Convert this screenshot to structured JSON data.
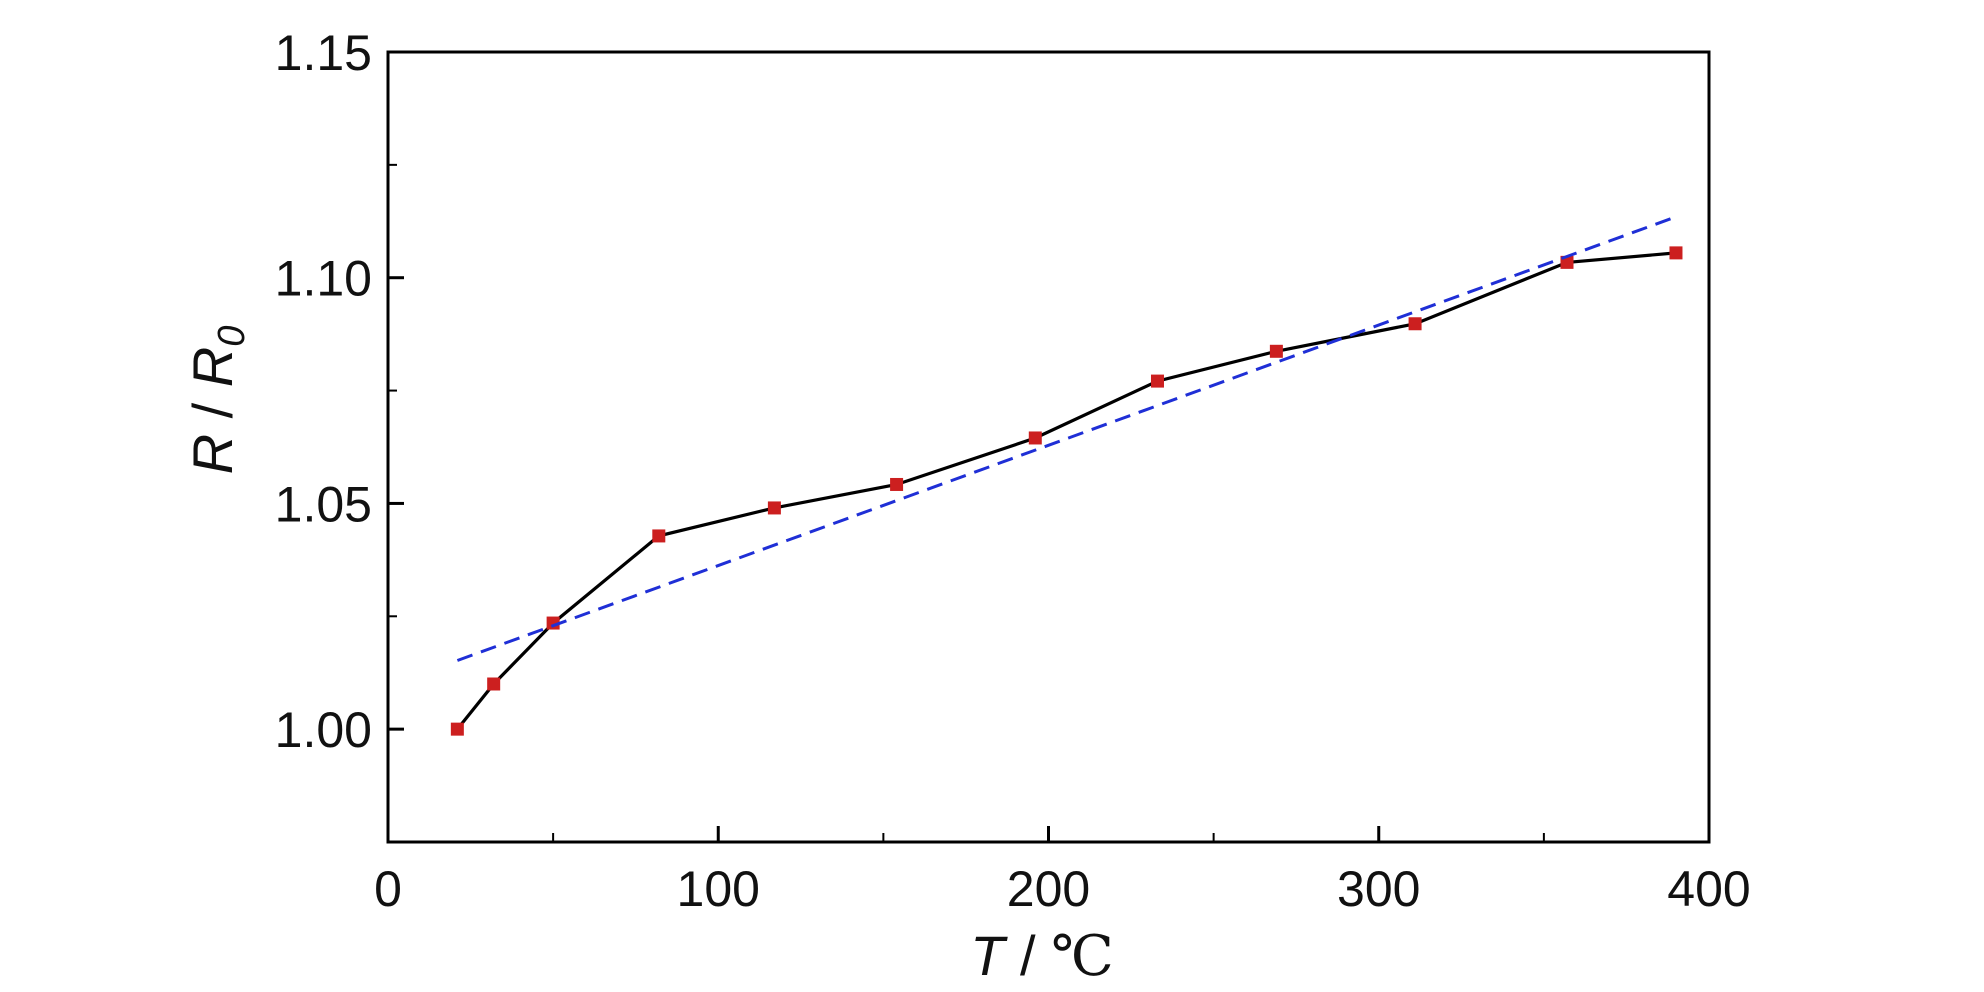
{
  "chart_data": {
    "type": "line",
    "x": [
      21,
      32,
      50,
      82,
      117,
      154,
      196,
      233,
      269,
      311,
      357,
      390
    ],
    "series": [
      {
        "values": [
          1.0,
          1.01,
          1.0235,
          1.0428,
          1.049,
          1.0542,
          1.0645,
          1.0771,
          1.0837,
          1.0898,
          1.1034,
          1.1055
        ],
        "color": "#000000",
        "marker": "square",
        "marker_color": "#cc1f1f",
        "style": "solid"
      },
      {
        "x": [
          21,
          390
        ],
        "values": [
          1.0152,
          1.1135
        ],
        "color": "#1f2fd6",
        "style": "dashed"
      }
    ],
    "xlabel": {
      "var": "T",
      "sep": " / ",
      "unit": "℃"
    },
    "ylabel": {
      "var1": "R",
      "sep": " / ",
      "var2": "R",
      "sub": "0"
    },
    "xlim": [
      0,
      400
    ],
    "ylim": [
      0.975,
      1.15
    ],
    "x_ticks": [
      "0",
      "100",
      "200",
      "300",
      "400"
    ],
    "y_ticks": [
      "1.00",
      "1.05",
      "1.10",
      "1.15"
    ],
    "grid": false,
    "legend": "none"
  }
}
